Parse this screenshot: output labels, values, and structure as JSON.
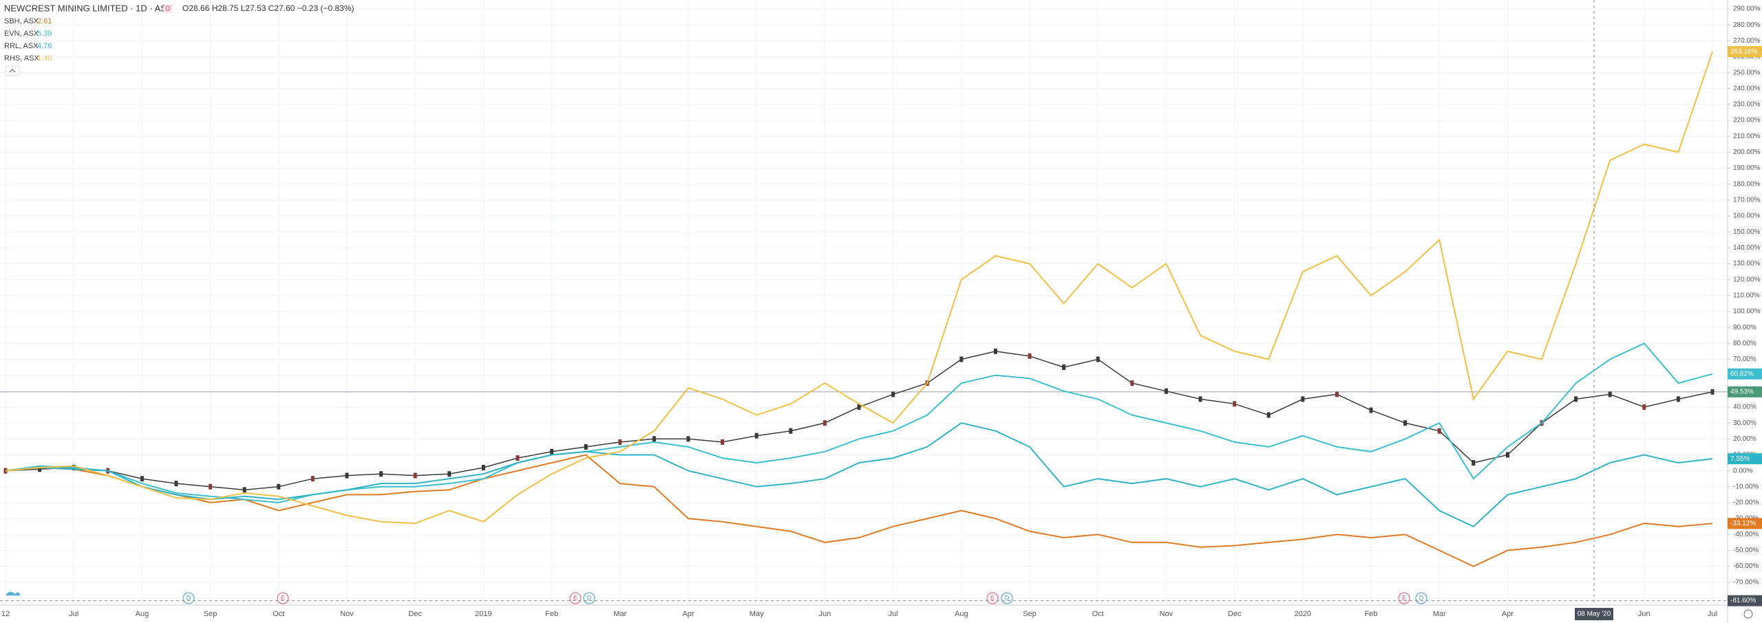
{
  "chart_data": {
    "type": "line",
    "ohlc": "O28.66 H28.75 L27.53 C27.60 −0.23 (−0.83%)",
    "interval_badge": "D",
    "categories": [
      "12",
      null,
      "Jul",
      null,
      "Aug",
      null,
      "Sep",
      null,
      "Oct",
      null,
      "Nov",
      null,
      "Dec",
      null,
      "2019",
      null,
      "Feb",
      null,
      "Mar",
      null,
      "Apr",
      null,
      "May",
      null,
      "Jun",
      null,
      "Jul",
      null,
      "Aug",
      null,
      "Sep",
      null,
      "Oct",
      null,
      "Nov",
      null,
      "Dec",
      null,
      "2020",
      null,
      "Feb",
      null,
      "Mar",
      null,
      "Apr",
      null,
      null,
      null,
      "Jun",
      null,
      "Jul"
    ],
    "series": [
      {
        "name": "NEWCREST MINING LIMITED · 1D · ASX",
        "color": "#3a3a3a",
        "values": [
          0,
          1,
          2,
          0,
          -5,
          -8,
          -10,
          -12,
          -10,
          -5,
          -3,
          -2,
          -3,
          -2,
          2,
          8,
          12,
          15,
          18,
          20,
          20,
          18,
          22,
          25,
          30,
          40,
          48,
          55,
          70,
          75,
          72,
          65,
          70,
          55,
          50,
          45,
          42,
          35,
          45,
          48,
          38,
          30,
          25,
          5,
          10,
          30,
          45,
          48,
          40,
          45,
          49.53
        ],
        "value_labels": [
          null,
          null,
          null,
          null,
          null,
          null,
          null,
          null,
          null,
          null,
          null,
          null,
          null,
          null,
          null,
          null,
          null,
          null,
          null,
          null,
          null,
          null,
          null,
          null,
          null,
          null,
          null,
          null,
          null,
          null,
          null,
          null,
          null,
          null,
          null,
          null,
          null,
          null,
          null,
          null,
          null,
          null,
          null,
          null,
          null,
          null,
          null,
          null,
          null,
          null,
          "49.53%"
        ],
        "label_color": "#4a9a7a"
      },
      {
        "name": "SBH, ASX",
        "price": "2.61",
        "color": "#e07b24",
        "values": [
          0,
          2,
          1,
          -3,
          -10,
          -15,
          -20,
          -18,
          -25,
          -20,
          -15,
          -15,
          -13,
          -12,
          -5,
          0,
          5,
          10,
          -8,
          -10,
          -30,
          -32,
          -35,
          -38,
          -45,
          -42,
          -35,
          -30,
          -25,
          -30,
          -38,
          -42,
          -40,
          -45,
          -45,
          -48,
          -47,
          -45,
          -43,
          -40,
          -42,
          -40,
          -50,
          -60,
          -50,
          -48,
          -45,
          -40,
          -33,
          -35,
          -33.12
        ],
        "value_labels": [
          null,
          null,
          null,
          null,
          null,
          null,
          null,
          null,
          null,
          null,
          null,
          null,
          null,
          null,
          null,
          null,
          null,
          null,
          null,
          null,
          null,
          null,
          null,
          null,
          null,
          null,
          null,
          null,
          null,
          null,
          null,
          null,
          null,
          null,
          null,
          null,
          null,
          null,
          null,
          null,
          null,
          null,
          null,
          null,
          null,
          null,
          null,
          null,
          null,
          null,
          "-33.12%"
        ],
        "label_color": "#e07b24"
      },
      {
        "name": "EVN, ASX",
        "price": "5.39",
        "color": "#3bbfcf",
        "values": [
          0,
          3,
          2,
          0,
          -8,
          -14,
          -16,
          -18,
          -20,
          -15,
          -12,
          -10,
          -10,
          -8,
          -5,
          5,
          10,
          12,
          15,
          18,
          15,
          8,
          5,
          8,
          12,
          20,
          25,
          35,
          55,
          60,
          58,
          50,
          45,
          35,
          30,
          25,
          18,
          15,
          22,
          15,
          12,
          20,
          30,
          -5,
          15,
          30,
          55,
          70,
          80,
          55,
          60.82
        ],
        "value_labels": [
          null,
          null,
          null,
          null,
          null,
          null,
          null,
          null,
          null,
          null,
          null,
          null,
          null,
          null,
          null,
          null,
          null,
          null,
          null,
          null,
          null,
          null,
          null,
          null,
          null,
          null,
          null,
          null,
          null,
          null,
          null,
          null,
          null,
          null,
          null,
          null,
          null,
          null,
          null,
          null,
          null,
          null,
          null,
          null,
          null,
          null,
          null,
          null,
          null,
          null,
          "60.82%"
        ],
        "label_color": "#3bbfcf"
      },
      {
        "name": "RRL, ASX",
        "price": "4.76",
        "color": "#2fb3c6",
        "values": [
          0,
          2,
          1,
          0,
          -10,
          -15,
          -18,
          -16,
          -18,
          -15,
          -12,
          -8,
          -8,
          -5,
          -2,
          5,
          10,
          12,
          10,
          10,
          0,
          -5,
          -10,
          -8,
          -5,
          5,
          8,
          15,
          30,
          25,
          15,
          -10,
          -5,
          -8,
          -5,
          -10,
          -5,
          -12,
          -5,
          -15,
          -10,
          -5,
          -25,
          -35,
          -15,
          -10,
          -5,
          5,
          10,
          5,
          7.55
        ],
        "value_labels": [
          null,
          null,
          null,
          null,
          null,
          null,
          null,
          null,
          null,
          null,
          null,
          null,
          null,
          null,
          null,
          null,
          null,
          null,
          null,
          null,
          null,
          null,
          null,
          null,
          null,
          null,
          null,
          null,
          null,
          null,
          null,
          null,
          null,
          null,
          null,
          null,
          null,
          null,
          null,
          null,
          null,
          null,
          null,
          null,
          null,
          null,
          null,
          null,
          null,
          null,
          "7.55%"
        ],
        "label_color": "#2fb3c6"
      },
      {
        "name": "RHS, ASX",
        "price": "1.40",
        "color": "#f0bf45",
        "values": [
          0,
          2,
          3,
          -3,
          -10,
          -17,
          -18,
          -14,
          -16,
          -22,
          -28,
          -32,
          -33,
          -25,
          -32,
          -15,
          -2,
          8,
          12,
          25,
          52,
          45,
          35,
          42,
          55,
          42,
          30,
          55,
          120,
          135,
          130,
          105,
          130,
          115,
          130,
          85,
          75,
          70,
          125,
          135,
          110,
          125,
          145,
          45,
          75,
          70,
          130,
          195,
          205,
          200,
          263.16
        ],
        "value_labels": [
          null,
          null,
          null,
          null,
          null,
          null,
          null,
          null,
          null,
          null,
          null,
          null,
          null,
          null,
          null,
          null,
          null,
          null,
          null,
          null,
          null,
          null,
          null,
          null,
          null,
          null,
          null,
          null,
          null,
          null,
          null,
          null,
          null,
          null,
          null,
          null,
          null,
          null,
          null,
          null,
          null,
          null,
          null,
          null,
          null,
          null,
          null,
          null,
          null,
          null,
          "263.16%"
        ],
        "label_color": "#f0bf45"
      }
    ],
    "events": [
      "D",
      "E",
      "E",
      "D",
      "E",
      "D",
      "E",
      "D"
    ],
    "crosshair": {
      "x_label": "08 May '20",
      "y": {
        "value": -81.6,
        "label": "-81.60%"
      }
    },
    "ylim": [
      -83.5,
      295.6
    ],
    "yticks": [
      {
        "value": 290,
        "label": "290.00%"
      },
      {
        "value": 280,
        "label": "280.00%"
      },
      {
        "value": 270,
        "label": "270.00%"
      },
      {
        "value": 260,
        "label": "260.00%"
      },
      {
        "value": 250,
        "label": "250.00%"
      },
      {
        "value": 240,
        "label": "240.00%"
      },
      {
        "value": 230,
        "label": "230.00%"
      },
      {
        "value": 220,
        "label": "220.00%"
      },
      {
        "value": 210,
        "label": "210.00%"
      },
      {
        "value": 200,
        "label": "200.00%"
      },
      {
        "value": 190,
        "label": "190.00%"
      },
      {
        "value": 180,
        "label": "180.00%"
      },
      {
        "value": 170,
        "label": "170.00%"
      },
      {
        "value": 160,
        "label": "160.00%"
      },
      {
        "value": 150,
        "label": "150.00%"
      },
      {
        "value": 140,
        "label": "140.00%"
      },
      {
        "value": 130,
        "label": "130.00%"
      },
      {
        "value": 120,
        "label": "120.00%"
      },
      {
        "value": 110,
        "label": "110.00%"
      },
      {
        "value": 100,
        "label": "100.00%"
      },
      {
        "value": 90,
        "label": "90.00%"
      },
      {
        "value": 80,
        "label": "80.00%"
      },
      {
        "value": 70,
        "label": "70.00%"
      },
      {
        "value": 60,
        "label": "60.00%"
      },
      {
        "value": 50,
        "label": "50.00%"
      },
      {
        "value": 40,
        "label": "40.00%"
      },
      {
        "value": 30,
        "label": "30.00%"
      },
      {
        "value": 20,
        "label": "20.00%"
      },
      {
        "value": 10,
        "label": "10.00%"
      },
      {
        "value": 0,
        "label": "0.00%"
      },
      {
        "value": -10,
        "label": "-10.00%"
      },
      {
        "value": -20,
        "label": "-20.00%"
      },
      {
        "value": -30,
        "label": "-30.00%"
      },
      {
        "value": -40,
        "label": "-40.00%"
      },
      {
        "value": -50,
        "label": "-50.00%"
      },
      {
        "value": -60,
        "label": "-60.00%"
      },
      {
        "value": -70,
        "label": "-70.00%"
      },
      {
        "value": -80,
        "label": "-80.00%"
      }
    ],
    "grid": true
  }
}
